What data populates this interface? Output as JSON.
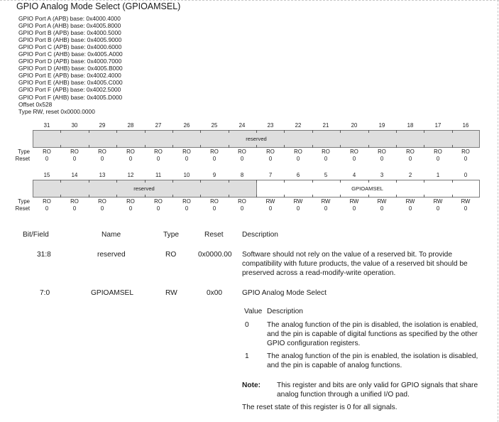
{
  "title": "GPIO Analog Mode Select (GPIOAMSEL)",
  "bases": [
    "GPIO Port A (APB) base: 0x4000.4000",
    "GPIO Port A (AHB) base: 0x4005.8000",
    "GPIO Port B (APB) base: 0x4000.5000",
    "GPIO Port B (AHB) base: 0x4005.9000",
    "GPIO Port C (APB) base: 0x4000.6000",
    "GPIO Port C (AHB) base: 0x4005.A000",
    "GPIO Port D (APB) base: 0x4000.7000",
    "GPIO Port D (AHB) base: 0x4005.B000",
    "GPIO Port E (APB) base: 0x4002.4000",
    "GPIO Port E (AHB) base: 0x4005.C000",
    "GPIO Port F (APB) base: 0x4002.5000",
    "GPIO Port F (AHB) base: 0x4005.D000",
    "Offset 0x528",
    "Type RW, reset 0x0000.0000"
  ],
  "register": {
    "type_label": "Type",
    "reset_label": "Reset",
    "upper": {
      "bits": [
        "31",
        "30",
        "29",
        "28",
        "27",
        "26",
        "25",
        "24",
        "23",
        "22",
        "21",
        "20",
        "19",
        "18",
        "17",
        "16"
      ],
      "field": "reserved",
      "types": [
        "RO",
        "RO",
        "RO",
        "RO",
        "RO",
        "RO",
        "RO",
        "RO",
        "RO",
        "RO",
        "RO",
        "RO",
        "RO",
        "RO",
        "RO",
        "RO"
      ],
      "resets": [
        "0",
        "0",
        "0",
        "0",
        "0",
        "0",
        "0",
        "0",
        "0",
        "0",
        "0",
        "0",
        "0",
        "0",
        "0",
        "0"
      ]
    },
    "lower": {
      "bits": [
        "15",
        "14",
        "13",
        "12",
        "11",
        "10",
        "9",
        "8",
        "7",
        "6",
        "5",
        "4",
        "3",
        "2",
        "1",
        "0"
      ],
      "field_reserved": "reserved",
      "field_amsel": "GPIOAMSEL",
      "types": [
        "RO",
        "RO",
        "RO",
        "RO",
        "RO",
        "RO",
        "RO",
        "RO",
        "RW",
        "RW",
        "RW",
        "RW",
        "RW",
        "RW",
        "RW",
        "RW"
      ],
      "resets": [
        "0",
        "0",
        "0",
        "0",
        "0",
        "0",
        "0",
        "0",
        "0",
        "0",
        "0",
        "0",
        "0",
        "0",
        "0",
        "0"
      ]
    }
  },
  "table": {
    "headers": {
      "bitfield": "Bit/Field",
      "name": "Name",
      "type": "Type",
      "reset": "Reset",
      "description": "Description"
    },
    "row1": {
      "bitfield": "31:8",
      "name": "reserved",
      "type": "RO",
      "reset": "0x0000.00",
      "description": "Software should not rely on the value of a reserved bit. To provide compatibility with future products, the value of a reserved bit should be preserved across a read-modify-write operation."
    },
    "row2": {
      "bitfield": "7:0",
      "name": "GPIOAMSEL",
      "type": "RW",
      "reset": "0x00",
      "description": "GPIO Analog Mode Select",
      "value_header": "Value",
      "desc_header": "Description",
      "values": [
        {
          "value": "0",
          "text": "The analog function of the pin is disabled, the isolation is enabled, and the pin is capable of digital functions as specified by the other GPIO configuration registers."
        },
        {
          "value": "1",
          "text": "The analog function of the pin is enabled, the isolation is disabled, and the pin is capable of analog functions."
        }
      ],
      "note_label": "Note:",
      "note_text": "This register and bits are only valid for GPIO signals that share analog function through a unified I/O pad.",
      "footer": "The reset state of this register is 0 for all signals."
    }
  }
}
